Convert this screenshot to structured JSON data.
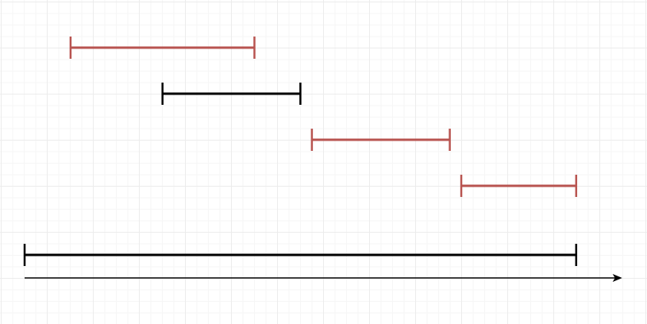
{
  "diagram": {
    "colors": {
      "accent_interval": "#b85450",
      "default_interval": "#000000",
      "axis": "#000000"
    },
    "intervals": [
      {
        "name": "red-interval-1",
        "color": "accent",
        "start": 1,
        "end": 5
      },
      {
        "name": "black-interval-1",
        "color": "default",
        "start": 3,
        "end": 6
      },
      {
        "name": "red-interval-2",
        "color": "accent",
        "start": 6.25,
        "end": 9.25
      },
      {
        "name": "red-interval-3",
        "color": "accent",
        "start": 9.5,
        "end": 12
      },
      {
        "name": "full-span-interval",
        "color": "default",
        "start": 0,
        "end": 12
      }
    ],
    "axis": {
      "start": 0,
      "end": 13
    }
  }
}
